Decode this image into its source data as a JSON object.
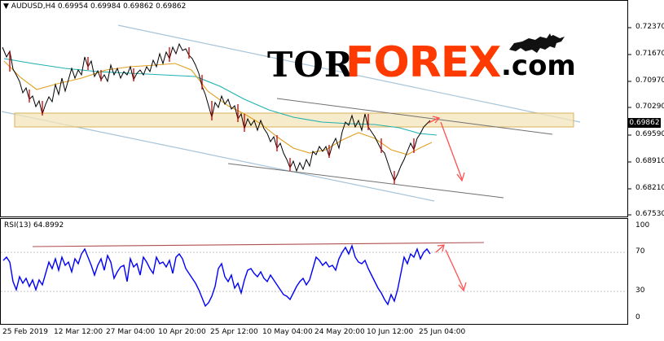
{
  "header": {
    "symbol_line": "AUDUSD,H4  0.69954 0.69984 0.69862 0.69862"
  },
  "rsi_panel": {
    "title": "RSI(13) 64.8992",
    "ticks": [
      "100",
      "70",
      "30",
      "0"
    ]
  },
  "price_axis": {
    "ticks": [
      "0.72370",
      "0.71670",
      "0.70970",
      "0.70290",
      "0.69590",
      "0.68910",
      "0.68210",
      "0.67530"
    ],
    "current_price": "0.69862"
  },
  "time_axis": {
    "ticks": [
      "25 Feb 2019",
      "12 Mar 12:00",
      "27 Mar 04:00",
      "10 Apr 20:00",
      "25 Apr 12:00",
      "10 May 04:00",
      "24 May 20:00",
      "10 Jun 12:00",
      "25 Jun 04:00"
    ]
  },
  "logo": {
    "part1": "TOR",
    "part2": "FOREX",
    "part3": ".com",
    "icon": "bull-bear-icon"
  },
  "colors": {
    "candles": "#000000",
    "bear_candles": "#cc0000",
    "ma_fast": "#e0a020",
    "ma_slow": "#20b0b0",
    "channel": "#a8c4d8",
    "zone_fill": "#f3e4b8",
    "zone_border": "#d8b25a",
    "trend_line": "#707070",
    "arrow": "#ff5050",
    "rsi_line": "#0000ff",
    "rsi_trend": "#b05050",
    "logo_red": "#ff3a00"
  }
}
